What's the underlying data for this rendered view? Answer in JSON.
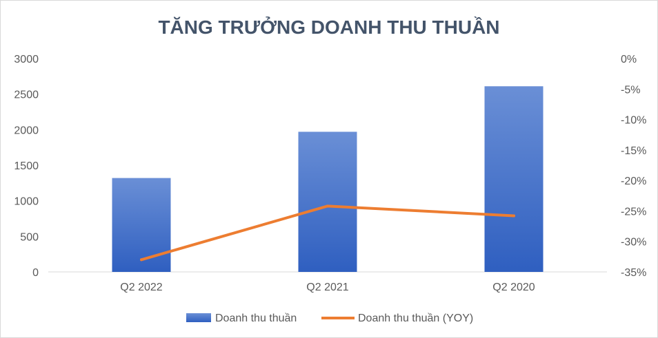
{
  "chart_data": {
    "type": "bar+line",
    "title": "TĂNG TRƯỞNG DOANH THU THUẦN",
    "categories": [
      "Q2 2022",
      "Q2 2021",
      "Q2 2020"
    ],
    "series": [
      {
        "name": "Doanh thu thuần",
        "type": "bar",
        "axis": "left",
        "values": [
          1320,
          1970,
          2610
        ]
      },
      {
        "name": "Doanh thu thuần (YOY)",
        "type": "line",
        "axis": "right",
        "values": [
          -33.0,
          -24.2,
          -25.8
        ]
      }
    ],
    "y_left": {
      "min": 0,
      "max": 3000,
      "ticks": [
        "0",
        "500",
        "1000",
        "1500",
        "2000",
        "2500",
        "3000"
      ]
    },
    "y_right": {
      "min": -35,
      "max": 0,
      "ticks": [
        "0%",
        "-5%",
        "-10%",
        "-15%",
        "-20%",
        "-25%",
        "-30%",
        "-35%"
      ]
    },
    "legend_position": "bottom",
    "grid": false,
    "colors": {
      "bar_top": "#6a8fd6",
      "bar_bottom": "#2f5fc0",
      "line": "#ed7d31",
      "title": "#44546a",
      "text": "#595959",
      "axis": "#d9d9d9"
    }
  }
}
